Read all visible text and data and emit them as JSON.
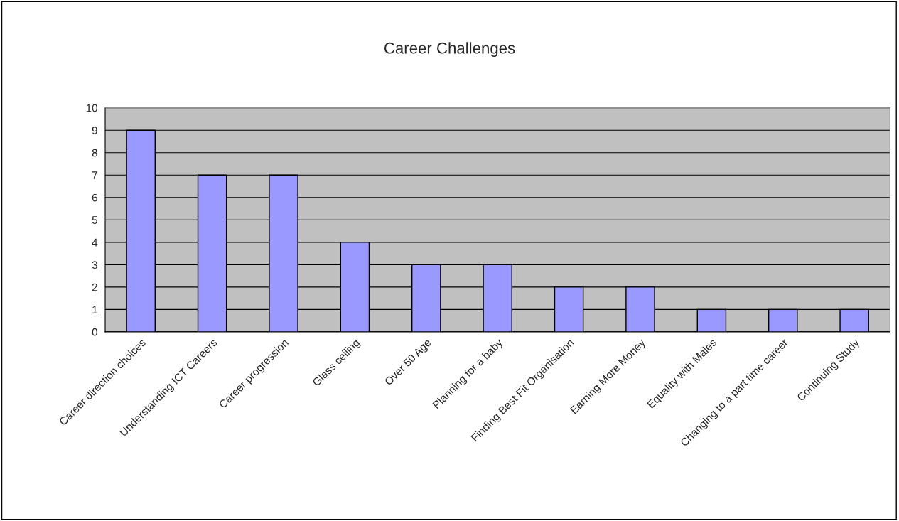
{
  "chart_data": {
    "type": "bar",
    "title": "Career Challenges",
    "categories": [
      "Career direction choices",
      "Understanding ICT Careers",
      "Career progression",
      "Glass ceiling",
      "Over 50 Age",
      "Planning for a baby",
      "Finding Best Fit Organisation",
      "Earning More Money",
      "Equality with Males",
      "Changing to a part time career",
      "Continuing Study"
    ],
    "values": [
      9,
      7,
      7,
      4,
      3,
      3,
      2,
      2,
      1,
      1,
      1
    ],
    "color": "#9999ff",
    "ylim": [
      0,
      10
    ],
    "yticks": [
      0,
      1,
      2,
      3,
      4,
      5,
      6,
      7,
      8,
      9,
      10
    ],
    "grid": "y",
    "legend": false
  }
}
